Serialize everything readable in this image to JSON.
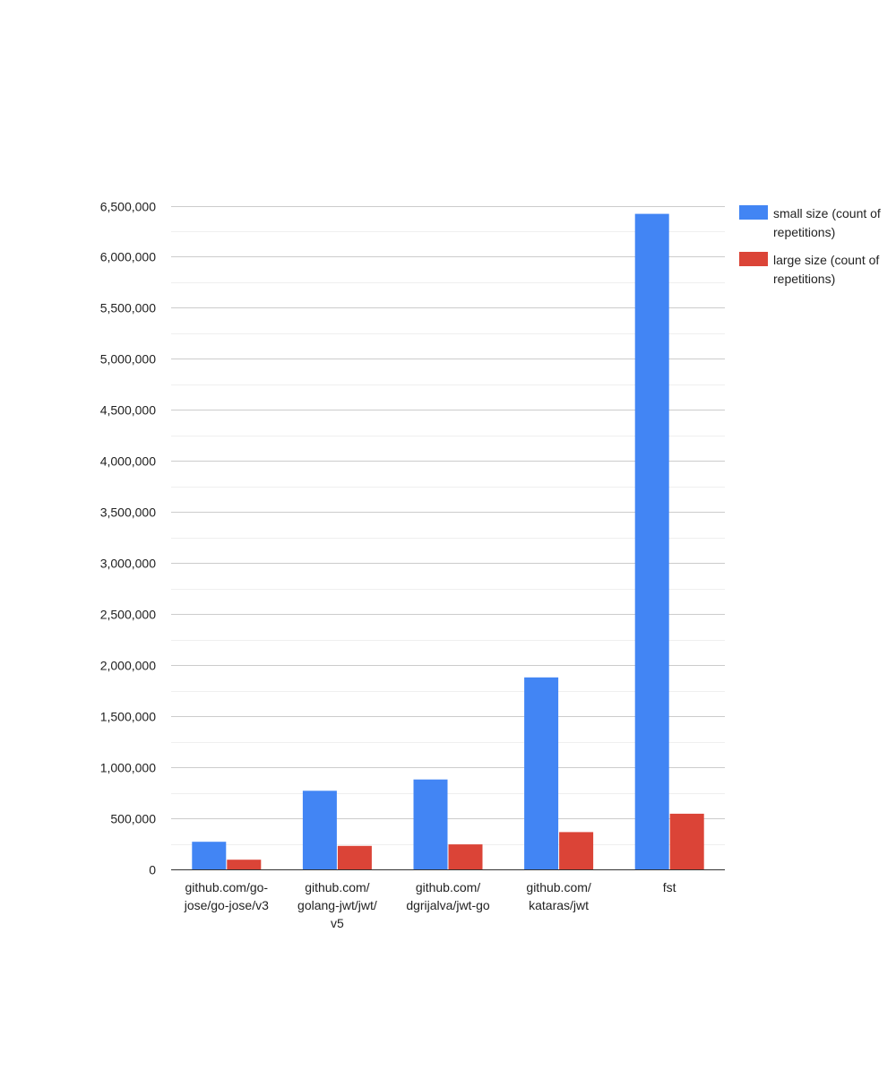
{
  "chart_data": {
    "type": "bar",
    "title": "",
    "xlabel": "",
    "ylabel": "",
    "categories": [
      [
        "github.com/go-",
        "jose/go-jose/v3"
      ],
      [
        "github.com/",
        "golang-jwt/jwt/",
        "v5"
      ],
      [
        "github.com/",
        "dgrijalva/jwt-go"
      ],
      [
        "github.com/",
        "kataras/jwt"
      ],
      [
        "fst"
      ]
    ],
    "series": [
      {
        "name": "small size (count of repetitions)",
        "color": "#4285f4",
        "values": [
          270000,
          770000,
          880000,
          1880000,
          6420000
        ]
      },
      {
        "name": "large size (count of repetitions)",
        "color": "#db4437",
        "values": [
          95000,
          230000,
          245000,
          365000,
          545000
        ]
      }
    ],
    "ylim": [
      0,
      6500000
    ],
    "yticks": [
      "0",
      "500,000",
      "1,000,000",
      "1,500,000",
      "2,000,000",
      "2,500,000",
      "3,000,000",
      "3,500,000",
      "4,000,000",
      "4,500,000",
      "5,000,000",
      "5,500,000",
      "6,000,000",
      "6,500,000"
    ],
    "ytick_values": [
      0,
      500000,
      1000000,
      1500000,
      2000000,
      2500000,
      3000000,
      3500000,
      4000000,
      4500000,
      5000000,
      5500000,
      6000000,
      6500000
    ],
    "grid": true,
    "minor_grid": true,
    "legend_position": "right"
  }
}
